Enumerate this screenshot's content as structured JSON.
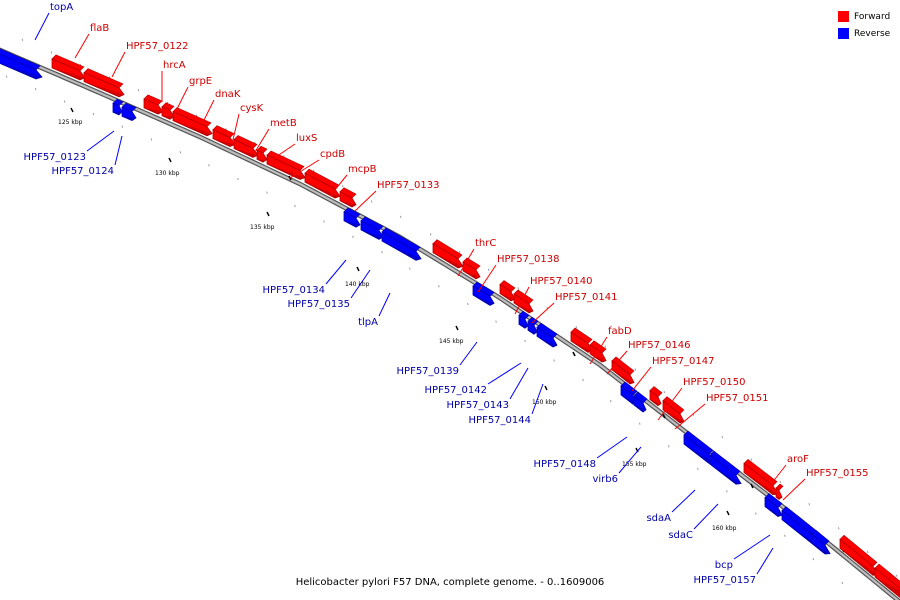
{
  "caption": "Helicobacter pylori F57 DNA, complete genome. - 0..1609006",
  "legend": {
    "forward": {
      "label": "Forward",
      "color": "#ff0000"
    },
    "reverse": {
      "label": "Reverse",
      "color": "#0000ff"
    }
  },
  "colors": {
    "forward": "#ff0000",
    "forward_dark": "#b00000",
    "reverse": "#0000ff",
    "reverse_dark": "#0000a8",
    "backbone": "#888888"
  },
  "ticks": [
    "125 kbp",
    "130 kbp",
    "135 kbp",
    "140 kbp",
    "145 kbp",
    "150 kbp",
    "155 kbp",
    "160 kbp"
  ],
  "genes": [
    {
      "name": "topA",
      "strand": "reverse"
    },
    {
      "name": "flaB",
      "strand": "forward"
    },
    {
      "name": "HPF57_0122",
      "strand": "forward"
    },
    {
      "name": "hrcA",
      "strand": "forward"
    },
    {
      "name": "grpE",
      "strand": "forward"
    },
    {
      "name": "dnaK",
      "strand": "forward"
    },
    {
      "name": "cysK",
      "strand": "forward"
    },
    {
      "name": "metB",
      "strand": "forward"
    },
    {
      "name": "luxS",
      "strand": "forward"
    },
    {
      "name": "cpdB",
      "strand": "forward"
    },
    {
      "name": "mcpB",
      "strand": "forward"
    },
    {
      "name": "HPF57_0133",
      "strand": "forward"
    },
    {
      "name": "HPF57_0123",
      "strand": "reverse"
    },
    {
      "name": "HPF57_0124",
      "strand": "reverse"
    },
    {
      "name": "HPF57_0134",
      "strand": "reverse"
    },
    {
      "name": "HPF57_0135",
      "strand": "reverse"
    },
    {
      "name": "tlpA",
      "strand": "reverse"
    },
    {
      "name": "thrC",
      "strand": "forward"
    },
    {
      "name": "HPF57_0138",
      "strand": "forward"
    },
    {
      "name": "HPF57_0140",
      "strand": "forward"
    },
    {
      "name": "HPF57_0141",
      "strand": "forward"
    },
    {
      "name": "HPF57_0139",
      "strand": "reverse"
    },
    {
      "name": "HPF57_0142",
      "strand": "reverse"
    },
    {
      "name": "HPF57_0143",
      "strand": "reverse"
    },
    {
      "name": "HPF57_0144",
      "strand": "reverse"
    },
    {
      "name": "fabD",
      "strand": "forward"
    },
    {
      "name": "HPF57_0146",
      "strand": "forward"
    },
    {
      "name": "HPF57_0147",
      "strand": "forward"
    },
    {
      "name": "HPF57_0150",
      "strand": "forward"
    },
    {
      "name": "HPF57_0151",
      "strand": "forward"
    },
    {
      "name": "HPF57_0148",
      "strand": "reverse"
    },
    {
      "name": "virb6",
      "strand": "reverse"
    },
    {
      "name": "aroF",
      "strand": "forward"
    },
    {
      "name": "HPF57_0155",
      "strand": "forward"
    },
    {
      "name": "sdaA",
      "strand": "reverse"
    },
    {
      "name": "sdaC",
      "strand": "reverse"
    },
    {
      "name": "bcp",
      "strand": "reverse"
    },
    {
      "name": "HPF57_0157",
      "strand": "reverse"
    }
  ]
}
